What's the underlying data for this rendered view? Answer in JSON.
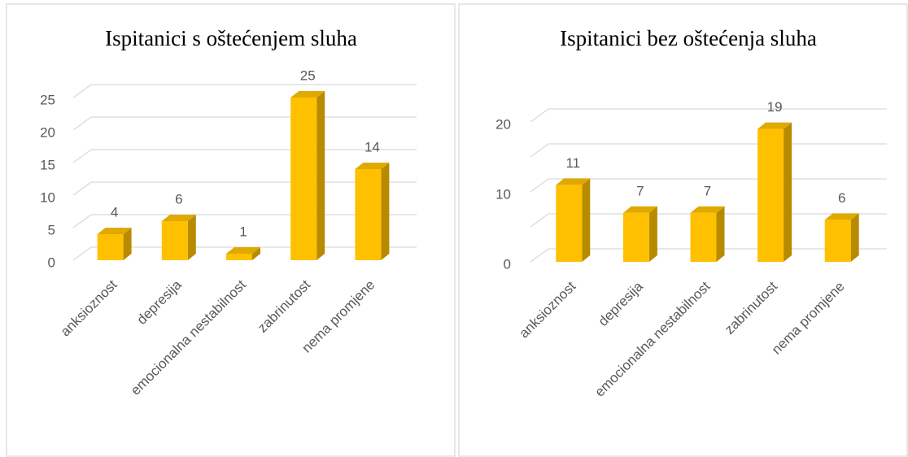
{
  "chart_data": [
    {
      "type": "bar3d",
      "title": "Ispitanici s oštećenjem sluha",
      "categories": [
        "anksioznost",
        "depresija",
        "emocionalna nestabilnost",
        "zabrinutost",
        "nema promjene"
      ],
      "values": [
        4,
        6,
        1,
        25,
        14
      ],
      "color": "#FFC000",
      "ylim": [
        0,
        25
      ],
      "yticks": [
        0,
        5,
        10,
        15,
        20,
        25
      ],
      "grid": true
    },
    {
      "type": "bar3d",
      "title": "Ispitanici bez oštećenja sluha",
      "categories": [
        "anksioznost",
        "depresija",
        "emocionalna nestabilnost",
        "zabrinutost",
        "nema promjene"
      ],
      "values": [
        11,
        7,
        7,
        19,
        6
      ],
      "color": "#FFC000",
      "ylim": [
        0,
        20
      ],
      "yticks": [
        0,
        10,
        20
      ],
      "minor_yticks": [
        5,
        15
      ],
      "grid": true
    }
  ]
}
